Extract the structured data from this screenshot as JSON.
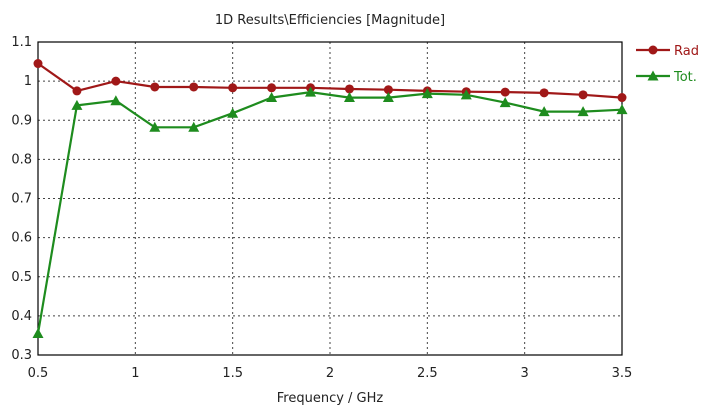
{
  "chart_data": {
    "type": "line",
    "title": "1D Results\\Efficiencies [Magnitude]",
    "xlabel": "Frequency / GHz",
    "ylabel": "",
    "xlim": [
      0.5,
      3.5
    ],
    "ylim": [
      0.3,
      1.1
    ],
    "x_ticks": [
      "0.5",
      "1",
      "1.5",
      "2",
      "2.5",
      "3",
      "3.5"
    ],
    "y_ticks": [
      "0.3",
      "0.4",
      "0.5",
      "0.6",
      "0.7",
      "0.8",
      "0.9",
      "1",
      "1.1"
    ],
    "grid": true,
    "legend_position": "right",
    "series": [
      {
        "name": "Rad",
        "color": "#a01818",
        "marker": "circle",
        "x": [
          0.5,
          0.7,
          0.9,
          1.1,
          1.3,
          1.5,
          1.7,
          1.9,
          2.1,
          2.3,
          2.5,
          2.7,
          2.9,
          3.1,
          3.3,
          3.5
        ],
        "values": [
          1.045,
          0.975,
          1.0,
          0.985,
          0.985,
          0.983,
          0.983,
          0.983,
          0.98,
          0.978,
          0.975,
          0.973,
          0.972,
          0.97,
          0.965,
          0.958
        ]
      },
      {
        "name": "Tot.",
        "color": "#1e8c1e",
        "marker": "triangle",
        "x": [
          0.5,
          0.7,
          0.9,
          1.1,
          1.3,
          1.5,
          1.7,
          1.9,
          2.1,
          2.3,
          2.5,
          2.7,
          2.9,
          3.1,
          3.3,
          3.5
        ],
        "values": [
          0.355,
          0.938,
          0.95,
          0.882,
          0.882,
          0.918,
          0.958,
          0.972,
          0.958,
          0.958,
          0.968,
          0.965,
          0.945,
          0.922,
          0.922,
          0.927
        ]
      }
    ]
  }
}
